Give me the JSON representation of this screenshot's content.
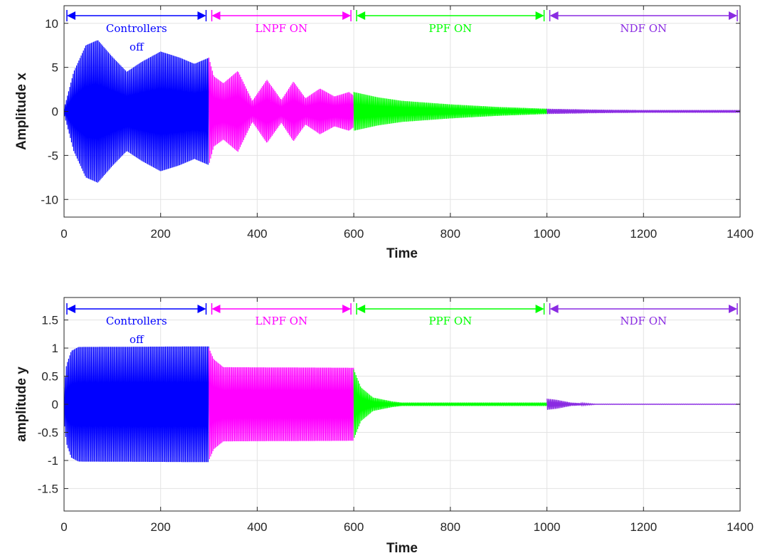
{
  "chart_data": [
    {
      "type": "line",
      "xlabel": "Time",
      "ylabel": "Amplitude x",
      "xlim": [
        0,
        1400
      ],
      "ylim": [
        -12,
        12
      ],
      "xticks": [
        0,
        200,
        400,
        600,
        800,
        1000,
        1200,
        1400
      ],
      "yticks": [
        -10,
        -5,
        0,
        5,
        10
      ],
      "grid": true,
      "segments": [
        {
          "label_lines": [
            "Controllers",
            "off"
          ],
          "x_start": 0,
          "x_end": 300,
          "color": "#0000ff",
          "envelope": [
            [
              0,
              0.3
            ],
            [
              20,
              4.5
            ],
            [
              45,
              7.5
            ],
            [
              70,
              8.1
            ],
            [
              100,
              6.2
            ],
            [
              130,
              4.5
            ],
            [
              160,
              5.6
            ],
            [
              200,
              6.8
            ],
            [
              240,
              6.1
            ],
            [
              270,
              5.4
            ],
            [
              300,
              6.1
            ]
          ]
        },
        {
          "label_lines": [
            "LNPF ON"
          ],
          "x_start": 300,
          "x_end": 600,
          "color": "#ff00ff",
          "envelope": [
            [
              300,
              6.1
            ],
            [
              310,
              4.0
            ],
            [
              330,
              3.2
            ],
            [
              360,
              4.6
            ],
            [
              390,
              1.2
            ],
            [
              420,
              3.6
            ],
            [
              450,
              1.3
            ],
            [
              475,
              3.4
            ],
            [
              500,
              1.5
            ],
            [
              530,
              2.6
            ],
            [
              560,
              1.7
            ],
            [
              590,
              2.2
            ],
            [
              600,
              1.8
            ]
          ]
        },
        {
          "label_lines": [
            "PPF ON"
          ],
          "x_start": 600,
          "x_end": 1000,
          "color": "#00ff00",
          "envelope": [
            [
              600,
              2.2
            ],
            [
              650,
              1.6
            ],
            [
              700,
              1.2
            ],
            [
              800,
              0.8
            ],
            [
              900,
              0.5
            ],
            [
              1000,
              0.3
            ]
          ]
        },
        {
          "label_lines": [
            "NDF ON"
          ],
          "x_start": 1000,
          "x_end": 1400,
          "color": "#8a2be2",
          "envelope": [
            [
              1000,
              0.3
            ],
            [
              1100,
              0.2
            ],
            [
              1200,
              0.15
            ],
            [
              1400,
              0.15
            ]
          ]
        }
      ]
    },
    {
      "type": "line",
      "xlabel": "Time",
      "ylabel": "amplitude y",
      "xlim": [
        0,
        1400
      ],
      "ylim": [
        -1.9,
        1.9
      ],
      "xticks": [
        0,
        200,
        400,
        600,
        800,
        1000,
        1200,
        1400
      ],
      "yticks": [
        -1.5,
        -1,
        -0.5,
        0,
        0.5,
        1,
        1.5
      ],
      "grid": true,
      "segments": [
        {
          "label_lines": [
            "Controllers",
            "off"
          ],
          "x_start": 0,
          "x_end": 300,
          "color": "#0000ff",
          "envelope": [
            [
              0,
              0.3
            ],
            [
              5,
              0.7
            ],
            [
              15,
              0.95
            ],
            [
              30,
              1.02
            ],
            [
              300,
              1.03
            ]
          ]
        },
        {
          "label_lines": [
            "LNPF ON"
          ],
          "x_start": 300,
          "x_end": 600,
          "color": "#ff00ff",
          "envelope": [
            [
              300,
              1.0
            ],
            [
              310,
              0.8
            ],
            [
              330,
              0.66
            ],
            [
              600,
              0.65
            ]
          ]
        },
        {
          "label_lines": [
            "PPF ON"
          ],
          "x_start": 600,
          "x_end": 1000,
          "color": "#00ff00",
          "envelope": [
            [
              600,
              0.62
            ],
            [
              615,
              0.3
            ],
            [
              640,
              0.12
            ],
            [
              680,
              0.05
            ],
            [
              700,
              0.03
            ],
            [
              1000,
              0.03
            ]
          ]
        },
        {
          "label_lines": [
            "NDF ON"
          ],
          "x_start": 1000,
          "x_end": 1400,
          "color": "#8a2be2",
          "envelope": [
            [
              1000,
              0.1
            ],
            [
              1020,
              0.08
            ],
            [
              1050,
              0.03
            ],
            [
              1100,
              0.005
            ],
            [
              1400,
              0.005
            ]
          ]
        }
      ]
    }
  ]
}
